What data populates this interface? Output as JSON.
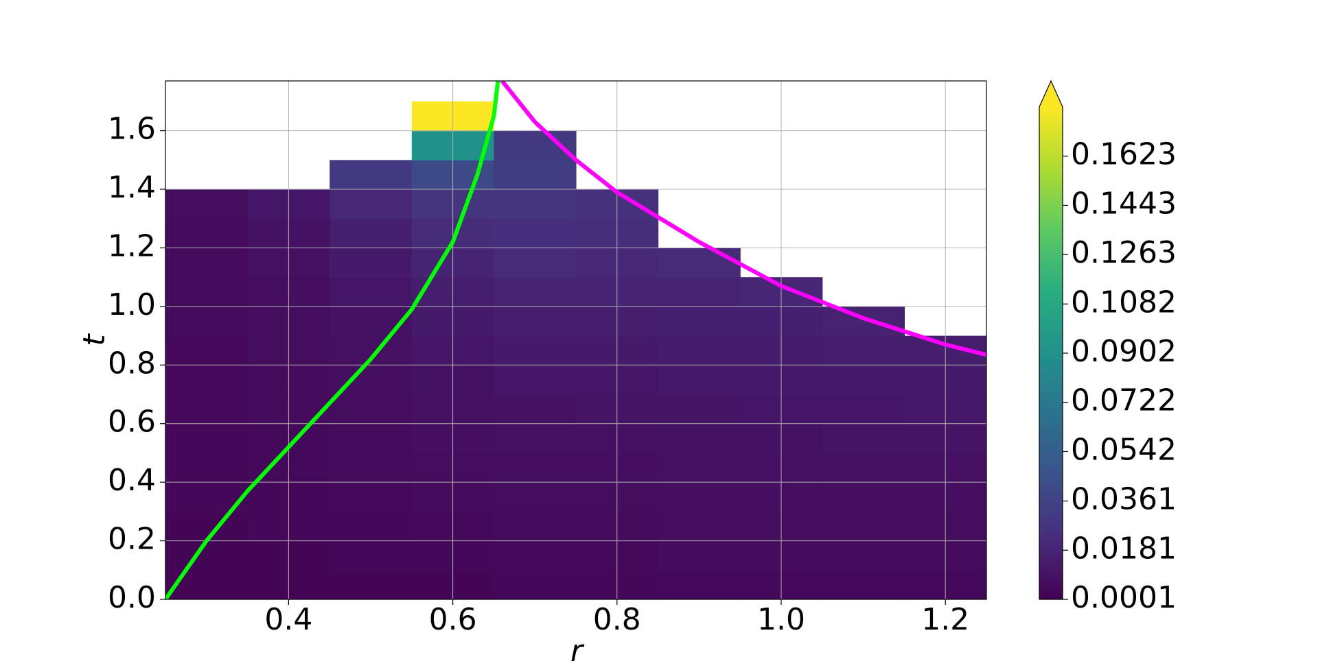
{
  "chart_data": {
    "type": "heatmap",
    "xlabel": "r",
    "ylabel": "t",
    "xlim": [
      0.25,
      1.25
    ],
    "ylim": [
      0,
      1.77
    ],
    "xticks": [
      0.4,
      0.6,
      0.8,
      {
        "value": 1.0,
        "label": "1.0"
      },
      1.2
    ],
    "yticks": [
      {
        "value": 0,
        "label": "0.0"
      },
      0.2,
      0.4,
      0.6,
      0.8,
      {
        "value": 1.0,
        "label": "1.0"
      },
      1.2,
      1.4,
      1.6
    ],
    "grid": true,
    "colormap": "viridis",
    "clim": [
      0.0001,
      0.1803
    ],
    "colorbar_extend": "max",
    "colorbar_ticks": [
      0.0001,
      0.0181,
      0.0361,
      0.0542,
      0.0722,
      0.0902,
      0.1082,
      0.1263,
      0.1443,
      0.1623
    ],
    "r_edges": [
      0.25,
      0.35,
      0.45,
      0.55,
      0.65,
      0.75,
      0.85,
      0.95,
      1.05,
      1.15,
      1.25
    ],
    "t_edges": [
      0,
      0.1,
      0.2,
      0.3,
      0.4,
      0.5,
      0.6,
      0.7,
      0.8,
      0.9,
      1.0,
      1.1,
      1.2,
      1.3,
      1.4,
      1.5,
      1.6,
      1.7
    ],
    "z": [
      [
        0.002,
        0.002,
        0.002,
        0.002,
        0.003,
        0.003,
        0.004,
        0.004,
        0.004,
        0.004
      ],
      [
        0.002,
        0.002,
        0.003,
        0.003,
        0.004,
        0.004,
        0.005,
        0.005,
        0.005,
        0.005
      ],
      [
        0.002,
        0.003,
        0.003,
        0.004,
        0.005,
        0.005,
        0.006,
        0.006,
        0.006,
        0.006
      ],
      [
        0.003,
        0.003,
        0.004,
        0.005,
        0.006,
        0.006,
        0.007,
        0.007,
        0.007,
        0.007
      ],
      [
        0.003,
        0.004,
        0.005,
        0.006,
        0.007,
        0.007,
        0.008,
        0.008,
        0.008,
        0.008
      ],
      [
        0.003,
        0.004,
        0.005,
        0.007,
        0.008,
        0.008,
        0.009,
        0.009,
        0.01,
        0.01
      ],
      [
        0.004,
        0.005,
        0.006,
        0.008,
        0.009,
        0.01,
        0.01,
        0.011,
        0.011,
        0.012
      ],
      [
        0.004,
        0.005,
        0.007,
        0.009,
        0.011,
        0.011,
        0.012,
        0.012,
        0.013,
        0.013
      ],
      [
        0.004,
        0.006,
        0.008,
        0.011,
        0.013,
        0.013,
        0.014,
        0.014,
        0.015,
        0.015
      ],
      [
        0.005,
        0.006,
        0.009,
        0.013,
        0.015,
        0.015,
        0.016,
        0.016,
        0.017,
        null
      ],
      [
        0.005,
        0.007,
        0.011,
        0.015,
        0.018,
        0.018,
        0.018,
        0.019,
        null,
        null
      ],
      [
        0.005,
        0.008,
        0.013,
        0.018,
        0.021,
        0.02,
        0.021,
        null,
        null,
        null
      ],
      [
        0.005,
        0.009,
        0.016,
        0.022,
        0.024,
        0.023,
        null,
        null,
        null,
        null
      ],
      [
        0.006,
        0.011,
        0.02,
        0.027,
        0.027,
        0.025,
        null,
        null,
        null,
        null
      ],
      [
        null,
        null,
        0.03,
        0.04,
        0.032,
        null,
        null,
        null,
        null,
        null
      ],
      [
        null,
        null,
        null,
        0.09,
        0.03,
        null,
        null,
        null,
        null,
        null
      ],
      [
        null,
        null,
        null,
        0.18,
        null,
        null,
        null,
        null,
        null,
        null
      ]
    ],
    "series": [
      {
        "color": "#00ff00",
        "x": [
          0.25,
          0.3,
          0.35,
          0.4,
          0.45,
          0.5,
          0.55,
          0.6,
          0.63,
          0.65,
          0.655
        ],
        "y": [
          0,
          0.2,
          0.37,
          0.52,
          0.67,
          0.82,
          0.99,
          1.22,
          1.45,
          1.65,
          1.77
        ]
      },
      {
        "color": "#ff00ff",
        "x": [
          0.66,
          0.7,
          0.75,
          0.8,
          0.9,
          1.0,
          1.1,
          1.2,
          1.25
        ],
        "y": [
          1.77,
          1.63,
          1.5,
          1.39,
          1.22,
          1.07,
          0.96,
          0.87,
          0.835
        ]
      }
    ]
  }
}
